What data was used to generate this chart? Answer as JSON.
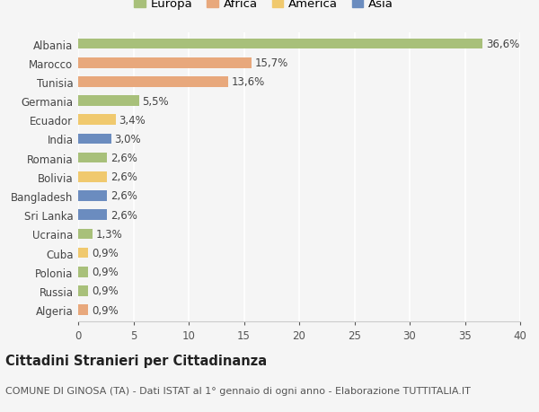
{
  "countries": [
    "Albania",
    "Marocco",
    "Tunisia",
    "Germania",
    "Ecuador",
    "India",
    "Romania",
    "Bolivia",
    "Bangladesh",
    "Sri Lanka",
    "Ucraina",
    "Cuba",
    "Polonia",
    "Russia",
    "Algeria"
  ],
  "values": [
    36.6,
    15.7,
    13.6,
    5.5,
    3.4,
    3.0,
    2.6,
    2.6,
    2.6,
    2.6,
    1.3,
    0.9,
    0.9,
    0.9,
    0.9
  ],
  "labels": [
    "36,6%",
    "15,7%",
    "13,6%",
    "5,5%",
    "3,4%",
    "3,0%",
    "2,6%",
    "2,6%",
    "2,6%",
    "2,6%",
    "1,3%",
    "0,9%",
    "0,9%",
    "0,9%",
    "0,9%"
  ],
  "continents": [
    "Europa",
    "Africa",
    "Africa",
    "Europa",
    "America",
    "Asia",
    "Europa",
    "America",
    "Asia",
    "Asia",
    "Europa",
    "America",
    "Europa",
    "Europa",
    "Africa"
  ],
  "colors": {
    "Europa": "#a8c07a",
    "Africa": "#e8a87c",
    "America": "#f0c96e",
    "Asia": "#6b8cbf"
  },
  "xlim": [
    0,
    40
  ],
  "xticks": [
    0,
    5,
    10,
    15,
    20,
    25,
    30,
    35,
    40
  ],
  "title": "Cittadini Stranieri per Cittadinanza",
  "subtitle": "COMUNE DI GINOSA (TA) - Dati ISTAT al 1° gennaio di ogni anno - Elaborazione TUTTITALIA.IT",
  "bg_color": "#f5f5f5",
  "bar_height": 0.55,
  "label_fontsize": 8.5,
  "tick_fontsize": 8.5,
  "title_fontsize": 10.5,
  "subtitle_fontsize": 8
}
